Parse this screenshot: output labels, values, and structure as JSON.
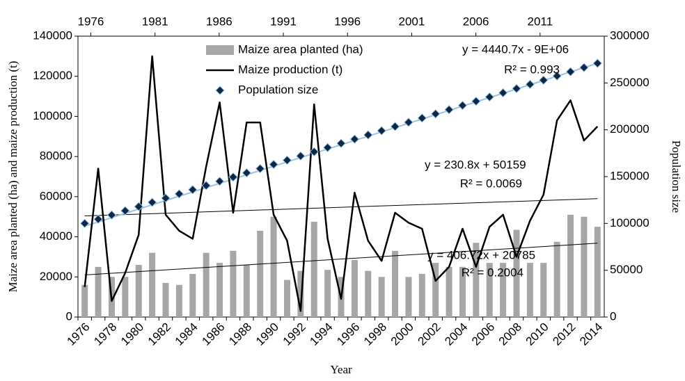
{
  "chart_data": {
    "type": "bar-line-scatter",
    "x_label": "Year",
    "y_label": "Maize area planted (ha) and maize production (t)",
    "y2_label": "Population size",
    "categories": [
      "1976",
      null,
      "1978",
      null,
      "1980",
      null,
      "1982",
      null,
      "1984",
      null,
      "1986",
      null,
      "1988",
      null,
      "1990",
      null,
      "1992",
      null,
      "1994",
      null,
      "1996",
      null,
      "1998",
      null,
      "2000",
      null,
      "2002",
      null,
      "2004",
      null,
      "2006",
      null,
      "2008",
      null,
      "2010",
      null,
      "2012",
      null,
      "2014"
    ],
    "ylim": [
      0,
      140000
    ],
    "yticks": [
      0,
      20000,
      40000,
      60000,
      80000,
      100000,
      120000,
      140000
    ],
    "y2lim": [
      0,
      300000
    ],
    "y2ticks": [
      0,
      50000,
      100000,
      150000,
      200000,
      250000,
      300000
    ],
    "x2lim": [
      1975,
      2016
    ],
    "x2ticks": [
      1976,
      1981,
      1986,
      1991,
      1996,
      2001,
      2006,
      2011
    ],
    "series": [
      {
        "name": "Maize area planted (ha)",
        "kind": "bar",
        "color": "#a6a6a6",
        "values": [
          16000,
          25000,
          20000,
          20000,
          26000,
          32000,
          17000,
          16000,
          21500,
          32000,
          27000,
          33000,
          26000,
          43000,
          50000,
          18500,
          23000,
          47500,
          23500,
          20000,
          28500,
          23000,
          20000,
          33000,
          20000,
          21500,
          27000,
          25000,
          25000,
          37000,
          27000,
          27000,
          43500,
          27000,
          27000,
          37500,
          51000,
          50000,
          45000
        ],
        "trend": [
          21000,
          36800
        ]
      },
      {
        "name": "Maize production (t)",
        "kind": "line",
        "color": "#000000",
        "values": [
          15000,
          74000,
          8000,
          22000,
          41000,
          130000,
          51000,
          43000,
          39000,
          75000,
          107000,
          52000,
          97000,
          97000,
          51000,
          38000,
          3000,
          106000,
          39000,
          9000,
          62000,
          38000,
          28000,
          52000,
          47000,
          44000,
          18000,
          25000,
          44000,
          25000,
          45000,
          51000,
          30000,
          48000,
          61000,
          98000,
          108000,
          88000,
          95000
        ],
        "trend": [
          50400,
          59000
        ]
      },
      {
        "name": "Population size",
        "kind": "scatter",
        "axis": "y2",
        "color": "#0d2747",
        "values": [
          100000,
          104500,
          109000,
          113500,
          118000,
          122500,
          127000,
          131500,
          136000,
          140500,
          145000,
          149500,
          154000,
          158500,
          163000,
          167500,
          172000,
          176500,
          181000,
          185500,
          190000,
          194500,
          199000,
          203500,
          208000,
          212500,
          217000,
          221500,
          226000,
          230500,
          235000,
          239500,
          244000,
          248500,
          253000,
          257500,
          262000,
          266500,
          271000
        ],
        "trend": [
          97000,
          271000
        ]
      }
    ],
    "annotations": [
      "y = 4440.7x - 9E+06",
      "R² = 0.993",
      "y = 230.8x + 50159",
      "R² = 0.0069",
      "y = 406.72x + 20785",
      "R² = 0.2004"
    ]
  }
}
